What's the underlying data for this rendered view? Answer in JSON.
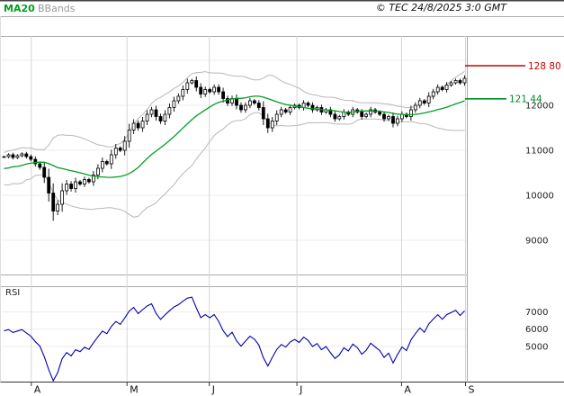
{
  "header": {
    "ma_label": "MA20",
    "bbands_label": "BBands",
    "copyright": "© TEC 24/8/2025 3:0 GMT"
  },
  "colors": {
    "ma_green": "#00a020",
    "level_green": "#008c28",
    "level_red": "#cc0000",
    "bbands_gray": "#b8b8b8",
    "bbands_label_gray": "#999999",
    "candle_black": "#000000",
    "rsi_blue": "#0000b0",
    "grid_light": "#ececec",
    "grid_month": "#d6d6d6",
    "panel_border": "#aaaaaa",
    "axis_line": "#333333",
    "axis_text": "#222222"
  },
  "chart_data": {
    "type": "candlestick",
    "title": "",
    "xlabel": "",
    "ylabel": "",
    "x_months": [
      {
        "label": "A",
        "idx": 6.6
      },
      {
        "label": "M",
        "idx": 28
      },
      {
        "label": "J",
        "idx": 46.4
      },
      {
        "label": "J",
        "idx": 66
      },
      {
        "label": "A",
        "idx": 89.4
      },
      {
        "label": "S",
        "idx": 103.7
      }
    ],
    "main_panel": {
      "ylim": [
        8240,
        13540
      ],
      "grid_values": [
        13000,
        12000,
        11000,
        10000,
        9000
      ],
      "y_ticks": [
        {
          "label": "12000",
          "value": 12000
        },
        {
          "label": "11000",
          "value": 11000
        },
        {
          "label": "10000",
          "value": 10000
        },
        {
          "label": "9000",
          "value": 9000
        }
      ],
      "levels": [
        {
          "label": "128 80",
          "value": 12880,
          "color_key": "level_red"
        },
        {
          "label": "121 44",
          "value": 12144,
          "color_key": "level_green"
        }
      ],
      "ma_period": 20,
      "bb_mult": 2,
      "pre_closes": [
        10250,
        10600,
        10350,
        10700,
        10450,
        10250,
        10500,
        10300,
        10550,
        10400,
        10650,
        10500,
        10700,
        10550,
        10750,
        10600,
        10700,
        10780,
        10820,
        10860
      ],
      "closes": [
        10860,
        10900,
        10840,
        10880,
        10920,
        10860,
        10800,
        10700,
        10620,
        10400,
        10050,
        9650,
        9800,
        10100,
        10250,
        10150,
        10300,
        10250,
        10350,
        10300,
        10450,
        10600,
        10750,
        10700,
        10900,
        11050,
        11000,
        11200,
        11450,
        11600,
        11500,
        11650,
        11800,
        11900,
        11750,
        11650,
        11800,
        11950,
        12100,
        12200,
        12350,
        12500,
        12550,
        12400,
        12250,
        12350,
        12300,
        12400,
        12300,
        12150,
        12050,
        12150,
        12000,
        11900,
        12000,
        12100,
        12050,
        11950,
        11700,
        11500,
        11650,
        11800,
        11900,
        11850,
        11950,
        12000,
        11950,
        12050,
        12000,
        11900,
        11950,
        11850,
        11900,
        11800,
        11700,
        11750,
        11850,
        11800,
        11900,
        11850,
        11750,
        11800,
        11900,
        11850,
        11800,
        11700,
        11750,
        11600,
        11700,
        11800,
        11750,
        11900,
        12000,
        12100,
        12050,
        12200,
        12300,
        12400,
        12350,
        12450,
        12500,
        12550,
        12500,
        12600
      ]
    },
    "rsi_panel": {
      "label": "RSI",
      "period": 14,
      "ylim": [
        30,
        85
      ],
      "y_ticks": [
        {
          "label": "7000",
          "value": 70
        },
        {
          "label": "6000",
          "value": 60
        },
        {
          "label": "5000",
          "value": 50
        }
      ]
    }
  }
}
